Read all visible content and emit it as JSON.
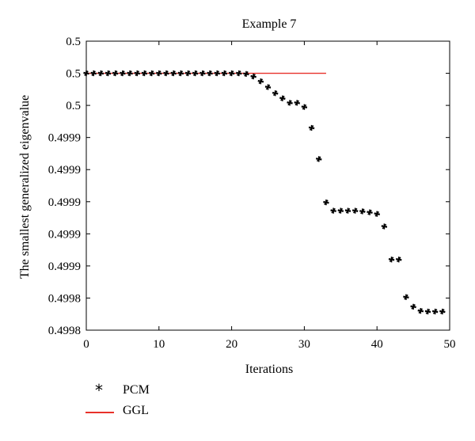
{
  "chart_data": {
    "type": "scatter",
    "title": "Example 7",
    "xlabel": "Iterations",
    "ylabel": "The smallest generalized eigenvalue",
    "xlim": [
      0,
      50
    ],
    "ylim": [
      0,
      9
    ],
    "x_ticks": [
      0,
      10,
      20,
      30,
      40,
      50
    ],
    "x_tick_labels": [
      "0",
      "10",
      "20",
      "30",
      "40",
      "50"
    ],
    "y_ticks": [
      0,
      1,
      2,
      3,
      4,
      5,
      6,
      7,
      8,
      9
    ],
    "y_tick_labels": [
      "0.4998",
      "0.4998",
      "0.4999",
      "0.4999",
      "0.4999",
      "0.4999",
      "0.4999",
      "0.5",
      "0.5",
      "0.5"
    ],
    "grid": false,
    "legend_position": "bottom-left",
    "series": [
      {
        "name": "PCM",
        "marker": "*",
        "color": "#000000",
        "x": [
          0,
          1,
          2,
          3,
          4,
          5,
          6,
          7,
          8,
          9,
          10,
          11,
          12,
          13,
          14,
          15,
          16,
          17,
          18,
          19,
          20,
          21,
          22,
          23,
          24,
          25,
          26,
          27,
          28,
          29,
          30,
          31,
          32,
          33,
          34,
          35,
          36,
          37,
          38,
          39,
          40,
          41,
          42,
          43,
          44,
          45,
          46,
          47,
          48,
          49
        ],
        "y": [
          8,
          8,
          8,
          8,
          8,
          8,
          8,
          8,
          8,
          8,
          8,
          8,
          8,
          8,
          8,
          8,
          8,
          8,
          8,
          8,
          8,
          8,
          7.98,
          7.9,
          7.75,
          7.57,
          7.38,
          7.22,
          7.08,
          7.08,
          6.95,
          6.3,
          5.33,
          3.98,
          3.72,
          3.72,
          3.72,
          3.72,
          3.7,
          3.67,
          3.62,
          3.23,
          2.2,
          2.2,
          1.03,
          0.73,
          0.6,
          0.58,
          0.58,
          0.58
        ]
      },
      {
        "name": "GGL",
        "marker": "line",
        "color": "#e8312a",
        "x": [
          0,
          33
        ],
        "y": [
          8,
          8
        ]
      }
    ]
  }
}
